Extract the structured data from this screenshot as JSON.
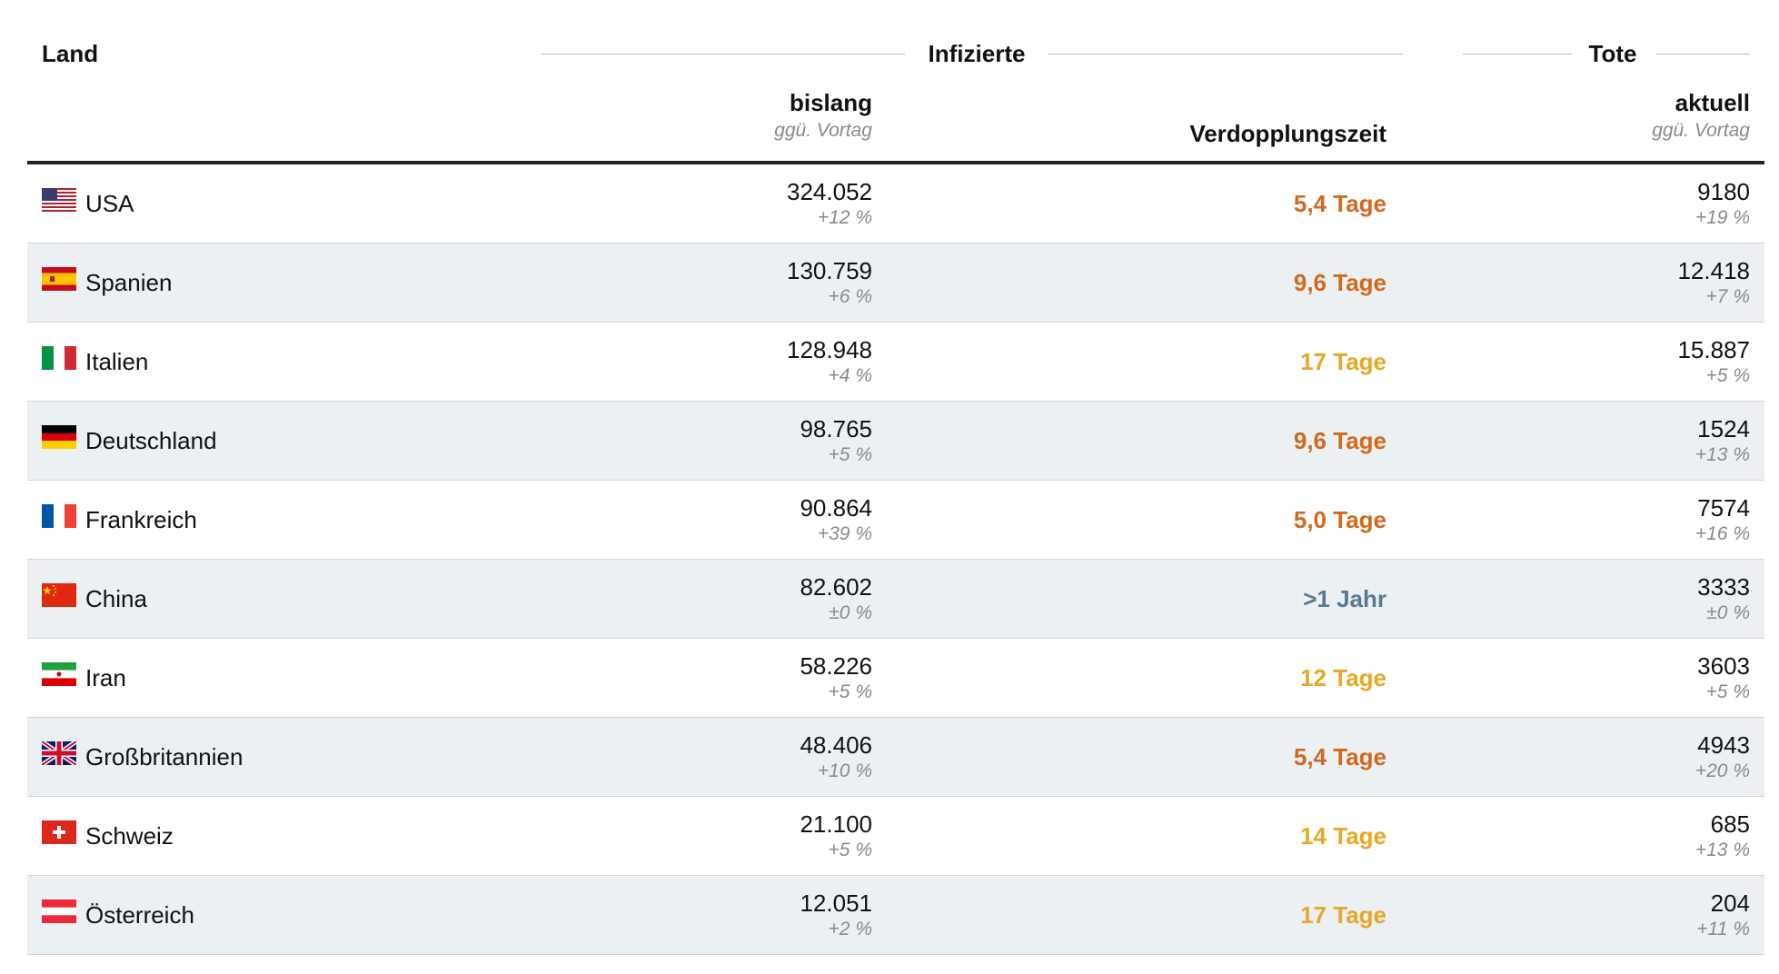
{
  "header": {
    "land": "Land",
    "infizierte": "Infizierte",
    "tote": "Tote",
    "bislang": "bislang",
    "bislang_sub": "ggü. Vortag",
    "verdopplung": "Verdopplungszeit",
    "aktuell": "aktuell",
    "aktuell_sub": "ggü. Vortag"
  },
  "colors": {
    "orange": "#d2691e",
    "yellow": "#e8a823",
    "slate": "#587a8e",
    "row_alt": "#ebf0f3"
  },
  "rows": [
    {
      "country": "USA",
      "flag": "us-flag-icon",
      "infected": "324.052",
      "infected_change": "+12 %",
      "doubling": "5,4 Tage",
      "doubling_color": "#d2691e",
      "deaths": "9180",
      "deaths_change": "+19 %"
    },
    {
      "country": "Spanien",
      "flag": "es-flag-icon",
      "infected": "130.759",
      "infected_change": "+6 %",
      "doubling": "9,6 Tage",
      "doubling_color": "#d2691e",
      "deaths": "12.418",
      "deaths_change": "+7 %"
    },
    {
      "country": "Italien",
      "flag": "it-flag-icon",
      "infected": "128.948",
      "infected_change": "+4 %",
      "doubling": "17 Tage",
      "doubling_color": "#e8a823",
      "deaths": "15.887",
      "deaths_change": "+5 %"
    },
    {
      "country": "Deutschland",
      "flag": "de-flag-icon",
      "infected": "98.765",
      "infected_change": "+5 %",
      "doubling": "9,6 Tage",
      "doubling_color": "#d2691e",
      "deaths": "1524",
      "deaths_change": "+13 %"
    },
    {
      "country": "Frankreich",
      "flag": "fr-flag-icon",
      "infected": "90.864",
      "infected_change": "+39 %",
      "doubling": "5,0 Tage",
      "doubling_color": "#d2691e",
      "deaths": "7574",
      "deaths_change": "+16 %"
    },
    {
      "country": "China",
      "flag": "cn-flag-icon",
      "infected": "82.602",
      "infected_change": "±0 %",
      "doubling": ">1 Jahr",
      "doubling_color": "#587a8e",
      "deaths": "3333",
      "deaths_change": "±0 %"
    },
    {
      "country": "Iran",
      "flag": "ir-flag-icon",
      "infected": "58.226",
      "infected_change": "+5 %",
      "doubling": "12 Tage",
      "doubling_color": "#e8a823",
      "deaths": "3603",
      "deaths_change": "+5 %"
    },
    {
      "country": "Großbritannien",
      "flag": "gb-flag-icon",
      "infected": "48.406",
      "infected_change": "+10 %",
      "doubling": "5,4 Tage",
      "doubling_color": "#d2691e",
      "deaths": "4943",
      "deaths_change": "+20 %"
    },
    {
      "country": "Schweiz",
      "flag": "ch-flag-icon",
      "infected": "21.100",
      "infected_change": "+5 %",
      "doubling": "14 Tage",
      "doubling_color": "#e8a823",
      "deaths": "685",
      "deaths_change": "+13 %"
    },
    {
      "country": "Österreich",
      "flag": "at-flag-icon",
      "infected": "12.051",
      "infected_change": "+2 %",
      "doubling": "17 Tage",
      "doubling_color": "#e8a823",
      "deaths": "204",
      "deaths_change": "+11 %"
    }
  ]
}
